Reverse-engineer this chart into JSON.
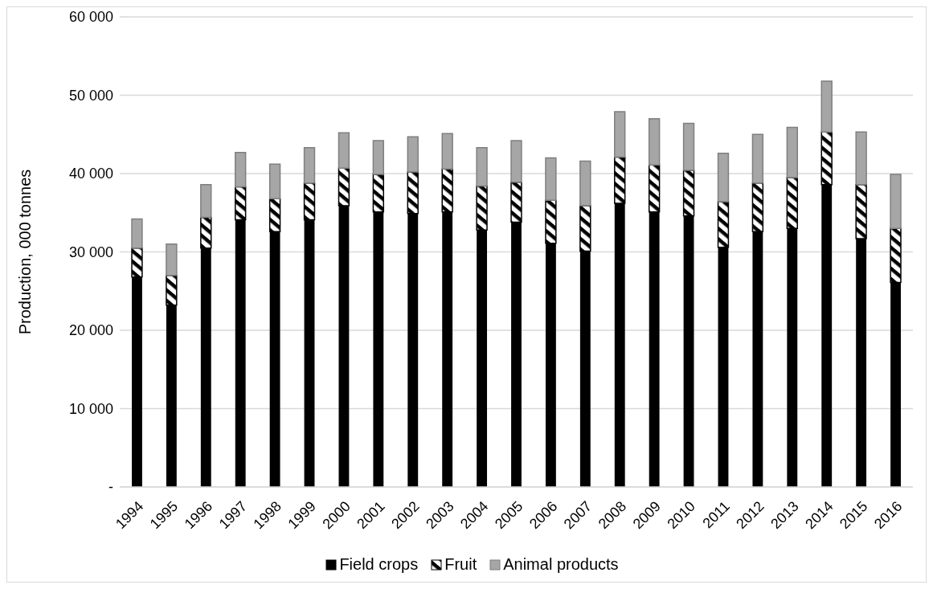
{
  "chart_data": {
    "type": "bar",
    "stacked": true,
    "ylabel": "Production, 000 tonnes",
    "categories": [
      "1994",
      "1995",
      "1996",
      "1997",
      "1998",
      "1999",
      "2000",
      "2001",
      "2002",
      "2003",
      "2004",
      "2005",
      "2006",
      "2007",
      "2008",
      "2009",
      "2010",
      "2011",
      "2012",
      "2013",
      "2014",
      "2015",
      "2016"
    ],
    "series": [
      {
        "name": "Field crops",
        "color": "#000000",
        "values": [
          26800,
          23200,
          30500,
          34100,
          32600,
          34100,
          35900,
          35100,
          34900,
          35100,
          32800,
          33800,
          31100,
          30100,
          36200,
          35100,
          34600,
          30600,
          32600,
          33000,
          38600,
          31700,
          26100
        ]
      },
      {
        "name": "Fruit",
        "color": "#000000",
        "values": [
          3700,
          3800,
          3900,
          4200,
          4200,
          4700,
          4800,
          4800,
          5300,
          5500,
          5600,
          5100,
          5500,
          5800,
          5900,
          6000,
          5800,
          5800,
          6200,
          6500,
          6700,
          6900,
          6900
        ]
      },
      {
        "name": "Animal products",
        "color": "#a6a6a6",
        "values": [
          3700,
          4000,
          4200,
          4400,
          4400,
          4500,
          4500,
          4300,
          4500,
          4500,
          4900,
          5300,
          5400,
          5700,
          5800,
          5900,
          6000,
          6200,
          6200,
          6400,
          6500,
          6700,
          6900
        ]
      }
    ],
    "ylim": [
      0,
      60000
    ],
    "yticks": [
      {
        "value": 0,
        "label": "-"
      },
      {
        "value": 10000,
        "label": "10 000"
      },
      {
        "value": 20000,
        "label": "20 000"
      },
      {
        "value": 30000,
        "label": "30 000"
      },
      {
        "value": 40000,
        "label": "40 000"
      },
      {
        "value": 50000,
        "label": "50 000"
      },
      {
        "value": 60000,
        "label": "60 000"
      }
    ],
    "grid": "y",
    "legend": "bottom"
  }
}
